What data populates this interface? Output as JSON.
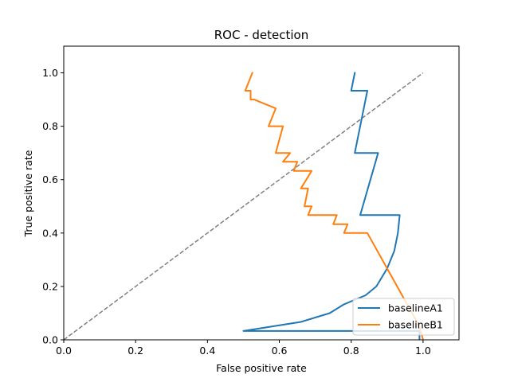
{
  "chart_data": {
    "type": "line",
    "title": "ROC - detection",
    "xlabel": "False positive rate",
    "ylabel": "True positive rate",
    "xlim": [
      0.0,
      1.1
    ],
    "ylim": [
      0.0,
      1.1
    ],
    "xticks": [
      0.0,
      0.2,
      0.4,
      0.6,
      0.8,
      1.0
    ],
    "yticks": [
      0.0,
      0.2,
      0.4,
      0.6,
      0.8,
      1.0
    ],
    "xtick_labels": [
      "0.0",
      "0.2",
      "0.4",
      "0.6",
      "0.8",
      "1.0"
    ],
    "ytick_labels": [
      "0.0",
      "0.2",
      "0.4",
      "0.6",
      "0.8",
      "1.0"
    ],
    "grid": false,
    "legend_position": "lower-right",
    "diagonal": {
      "x": [
        0.0,
        1.0
      ],
      "y": [
        0.0,
        1.0
      ],
      "style": "dashed",
      "color": "#808080"
    },
    "series": [
      {
        "name": "baselineA1",
        "color": "#1f77b4",
        "x": [
          0.81,
          0.8,
          0.845,
          0.81,
          0.875,
          0.825,
          0.935,
          0.93,
          0.92,
          0.9,
          0.87,
          0.84,
          0.78,
          0.74,
          0.66,
          0.5,
          0.99,
          0.99
        ],
        "y": [
          1.0,
          0.933,
          0.933,
          0.7,
          0.7,
          0.467,
          0.467,
          0.4,
          0.333,
          0.267,
          0.2,
          0.167,
          0.133,
          0.1,
          0.067,
          0.033,
          0.033,
          0.0
        ]
      },
      {
        "name": "baselineB1",
        "color": "#ff7f0e",
        "x": [
          0.525,
          0.505,
          0.52,
          0.52,
          0.53,
          0.59,
          0.57,
          0.61,
          0.59,
          0.63,
          0.61,
          0.65,
          0.64,
          0.69,
          0.66,
          0.68,
          0.67,
          0.69,
          0.68,
          0.76,
          0.75,
          0.79,
          0.78,
          0.845,
          0.99,
          1.0
        ],
        "y": [
          1.0,
          0.933,
          0.933,
          0.9,
          0.9,
          0.867,
          0.8,
          0.8,
          0.7,
          0.7,
          0.667,
          0.667,
          0.633,
          0.633,
          0.567,
          0.567,
          0.5,
          0.5,
          0.467,
          0.467,
          0.433,
          0.433,
          0.4,
          0.4,
          0.05,
          0.0
        ]
      }
    ]
  }
}
